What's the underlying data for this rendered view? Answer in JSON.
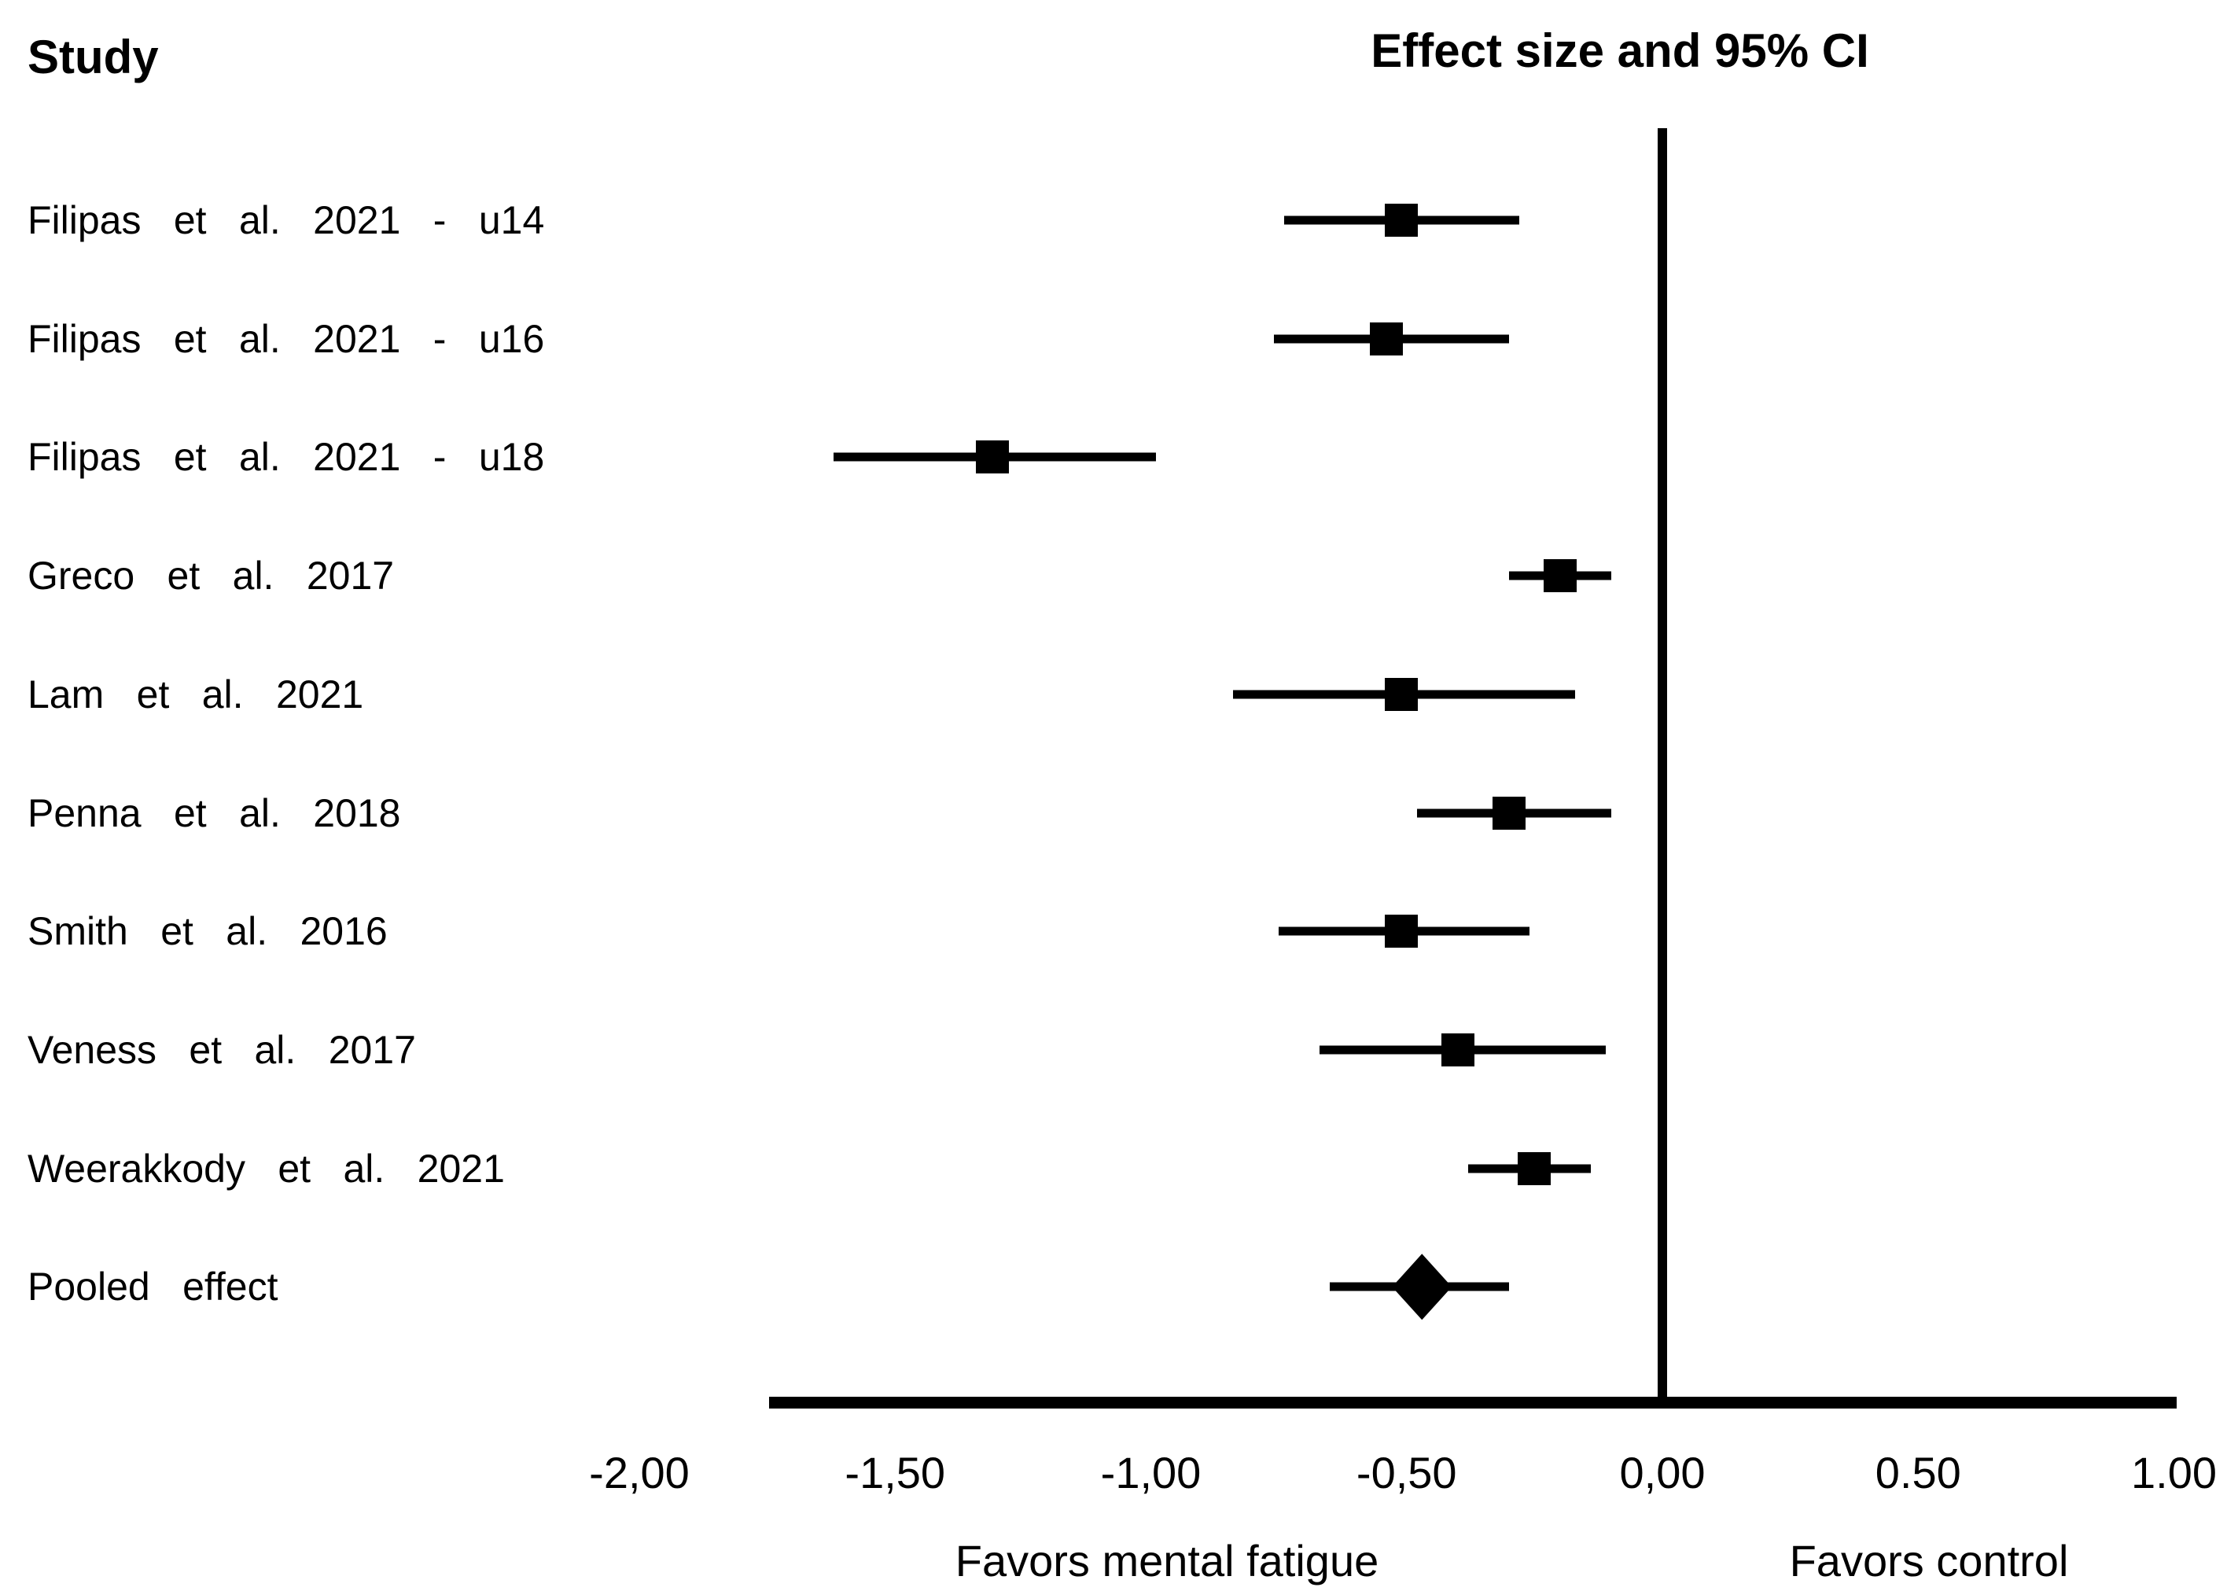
{
  "header": {
    "left_title": "Study",
    "right_title": "Effect size and 95% CI"
  },
  "chart_data": {
    "type": "forest",
    "title": "Effect size and 95% CI",
    "study_column_header": "Study",
    "xlabel_left": "Favors mental fatigue",
    "xlabel_right": "Favors control",
    "grid": false,
    "legend": false,
    "x_axis_line_range": [
      -1.75,
      1.0
    ],
    "tick_range": [
      -2.0,
      1.0
    ],
    "zero_line_value": 0.0,
    "x_ticks": [
      {
        "value": -2.0,
        "label": "-2,00"
      },
      {
        "value": -1.5,
        "label": "-1,50"
      },
      {
        "value": -1.0,
        "label": "-1,00"
      },
      {
        "value": -0.5,
        "label": "-0,50"
      },
      {
        "value": 0.0,
        "label": "0,00"
      },
      {
        "value": 0.5,
        "label": "0.50"
      },
      {
        "value": 1.0,
        "label": "1.00"
      }
    ],
    "series": [
      {
        "study": "Filipas et al. 2021 - u14",
        "effect": -0.51,
        "ci_low": -0.74,
        "ci_high": -0.28,
        "marker": "square"
      },
      {
        "study": "Filipas et al. 2021 - u16",
        "effect": -0.54,
        "ci_low": -0.76,
        "ci_high": -0.3,
        "marker": "square"
      },
      {
        "study": "Filipas et al. 2021 - u18",
        "effect": -1.31,
        "ci_low": -1.62,
        "ci_high": -0.99,
        "marker": "square"
      },
      {
        "study": "Greco et al. 2017",
        "effect": -0.2,
        "ci_low": -0.3,
        "ci_high": -0.1,
        "marker": "square"
      },
      {
        "study": "Lam et al. 2021",
        "effect": -0.51,
        "ci_low": -0.84,
        "ci_high": -0.17,
        "marker": "square"
      },
      {
        "study": "Penna et al. 2018",
        "effect": -0.3,
        "ci_low": -0.48,
        "ci_high": -0.1,
        "marker": "square"
      },
      {
        "study": "Smith et al. 2016",
        "effect": -0.51,
        "ci_low": -0.75,
        "ci_high": -0.26,
        "marker": "square"
      },
      {
        "study": "Veness et al. 2017",
        "effect": -0.4,
        "ci_low": -0.67,
        "ci_high": -0.11,
        "marker": "square"
      },
      {
        "study": "Weerakkody et al. 2021",
        "effect": -0.25,
        "ci_low": -0.38,
        "ci_high": -0.14,
        "marker": "square"
      },
      {
        "study": "Pooled effect",
        "effect": -0.47,
        "ci_low": -0.65,
        "ci_high": -0.3,
        "marker": "diamond"
      }
    ]
  },
  "colors": {
    "foreground": "#000000",
    "background": "#ffffff"
  }
}
